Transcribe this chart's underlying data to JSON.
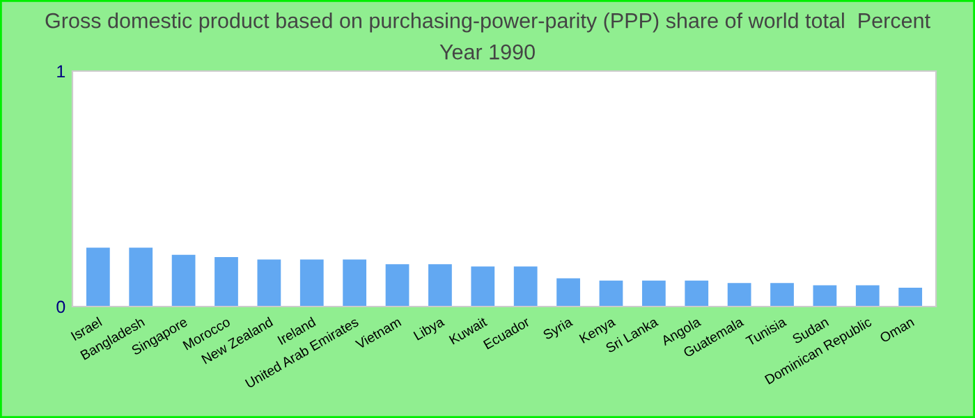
{
  "chart_data": {
    "type": "bar",
    "title": "Gross domestic product based on purchasing-power-parity (PPP) share of world total  Percent",
    "subtitle": "Year 1990",
    "categories": [
      "Israel",
      "Bangladesh",
      "Singapore",
      "Morocco",
      "New Zealand",
      "Ireland",
      "United Arab Emirates",
      "Vietnam",
      "Libya",
      "Kuwait",
      "Ecuador",
      "Syria",
      "Kenya",
      "Sri Lanka",
      "Angola",
      "Guatemala",
      "Tunisia",
      "Sudan",
      "Dominican Republic",
      "Oman"
    ],
    "values": [
      0.25,
      0.25,
      0.22,
      0.21,
      0.2,
      0.2,
      0.2,
      0.18,
      0.18,
      0.17,
      0.17,
      0.12,
      0.11,
      0.11,
      0.11,
      0.1,
      0.1,
      0.09,
      0.09,
      0.08
    ],
    "color": "#62a8f2",
    "ylim": [
      0,
      1
    ],
    "yticks": [
      0,
      1
    ],
    "grid": false,
    "legend": false
  }
}
